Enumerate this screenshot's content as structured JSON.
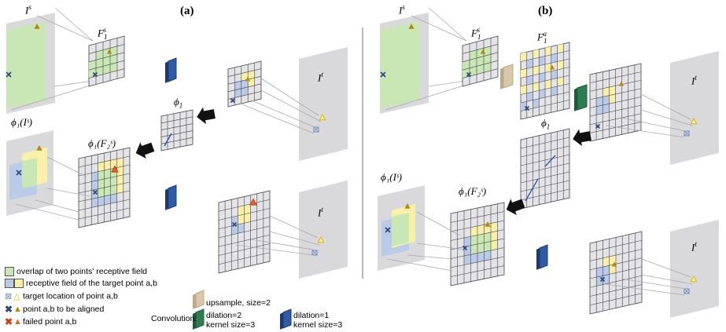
{
  "panels": {
    "a": "(a)",
    "b": "(b)"
  },
  "labels": {
    "Is": "I",
    "Is_sup": "s",
    "It": "I",
    "It_sup": "t",
    "F1s": "F",
    "F1s_sub": "1",
    "F1s_sup": "s",
    "F1a": "F",
    "F1a_sub": "1",
    "F1a_sup": "a",
    "phi1": "ϕ",
    "phi1_sub": "1",
    "phi1Is": "ϕ₁(Iˢ)",
    "phi1F2s": "ϕ₁(F₂ˢ)"
  },
  "legend": {
    "overlap": "overlap of two points' receptive field",
    "receptive": "receptive field of the target point a,b",
    "target_loc": "target location of point a,b",
    "to_align": "point a,b to be aligned",
    "failed": "failed point a,b",
    "upsample": "upsample, size=2",
    "convolution": "Convolution:",
    "dil2_line1": "dilation=2",
    "dil2_line2": "kernel size=3",
    "dil1_line1": "dilation=1",
    "dil1_line2": "kernel size=3"
  },
  "colors": {
    "image_plane": "#d9d9dc",
    "grid_fill": "#e4e4e8",
    "grid_line": "#444444",
    "green": "#c9e7b4",
    "yellow": "#fbf0a8",
    "blue": "#b9cbe9",
    "orange_marker": "#b8860b",
    "red_marker": "#d03b1c",
    "blue_marker": "#2f4a7a",
    "conv_blue": "#2e5aa6",
    "conv_green": "#2e7d4f",
    "upsample": "#d8c7a8",
    "arrow": "#111111",
    "divider": "#8c8c8c"
  }
}
